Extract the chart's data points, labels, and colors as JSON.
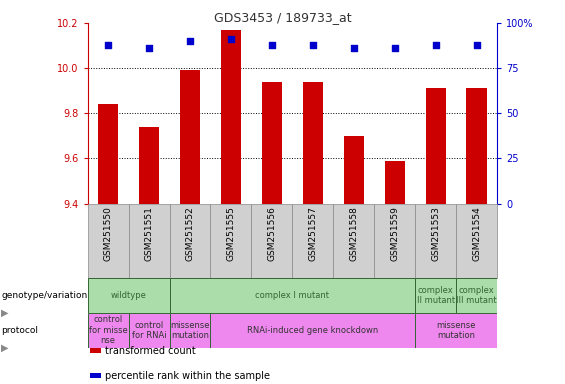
{
  "title": "GDS3453 / 189733_at",
  "samples": [
    "GSM251550",
    "GSM251551",
    "GSM251552",
    "GSM251555",
    "GSM251556",
    "GSM251557",
    "GSM251558",
    "GSM251559",
    "GSM251553",
    "GSM251554"
  ],
  "transformed_count": [
    9.84,
    9.74,
    9.99,
    10.17,
    9.94,
    9.94,
    9.7,
    9.59,
    9.91,
    9.91
  ],
  "percentile_rank": [
    88,
    86,
    90,
    91,
    88,
    88,
    86,
    86,
    88,
    88
  ],
  "ylim_left": [
    9.4,
    10.2
  ],
  "ylim_right": [
    0,
    100
  ],
  "yticks_left": [
    9.4,
    9.6,
    9.8,
    10.0,
    10.2
  ],
  "yticks_right": [
    0,
    25,
    50,
    75,
    100
  ],
  "bar_color": "#cc0000",
  "dot_color": "#0000cc",
  "left_axis_color": "#cc0000",
  "right_axis_color": "#0000cc",
  "sample_bg_color": "#d0d0d0",
  "geno_configs": [
    [
      0,
      2,
      "wildtype",
      "#aaddaa"
    ],
    [
      2,
      8,
      "complex I mutant",
      "#aaddaa"
    ],
    [
      8,
      9,
      "complex\nII mutant",
      "#aaddaa"
    ],
    [
      9,
      10,
      "complex\nIII mutant",
      "#aaddaa"
    ]
  ],
  "proto_configs": [
    [
      0,
      1,
      "control\nfor misse\nnse",
      "#ee88ee"
    ],
    [
      1,
      2,
      "control\nfor RNAi",
      "#ee88ee"
    ],
    [
      2,
      3,
      "missense\nmutation",
      "#ee88ee"
    ],
    [
      3,
      8,
      "RNAi-induced gene knockdown",
      "#ee88ee"
    ],
    [
      8,
      10,
      "missense\nmutation",
      "#ee88ee"
    ]
  ],
  "geno_text_color": "#336633",
  "geno_border_color": "#336633",
  "legend_bar_label": "transformed count",
  "legend_dot_label": "percentile rank within the sample"
}
